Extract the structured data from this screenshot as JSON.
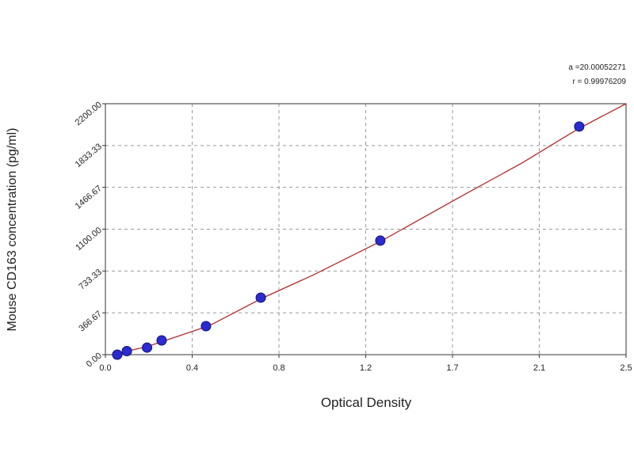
{
  "chart_data": {
    "type": "scatter",
    "xlabel": "Optical Density",
    "ylabel": "Mouse CD163 concentration (pg/ml)",
    "annotations": [
      "a =20.00052271",
      "r = 0.99976209"
    ],
    "xlim": [
      0,
      2.5
    ],
    "ylim": [
      0,
      2200
    ],
    "xticks": [
      {
        "value": 0,
        "label": "0.0"
      },
      {
        "value": 0.4167,
        "label": "0.4"
      },
      {
        "value": 0.8333,
        "label": "0.8"
      },
      {
        "value": 1.25,
        "label": "1.2"
      },
      {
        "value": 1.6667,
        "label": "1.7"
      },
      {
        "value": 2.0833,
        "label": "2.1"
      },
      2.5
    ],
    "yticks": [
      {
        "value": 0,
        "label": "0.00"
      },
      366.67,
      733.33,
      {
        "value": 1100,
        "label": "1100.00"
      },
      1466.67,
      1833.33,
      {
        "value": 2200,
        "label": "2200.00"
      }
    ],
    "grid": true,
    "series": [
      {
        "type": "scatter",
        "color": "#2b2bd0",
        "x": [
          0.057,
          0.103,
          0.2,
          0.27,
          0.483,
          0.746,
          1.32,
          2.275
        ],
        "values": [
          0,
          31,
          62,
          125,
          250,
          500,
          1000,
          2000
        ]
      },
      {
        "type": "line",
        "color": "#b02a2a",
        "x": [
          0.03,
          0.2,
          0.5,
          0.75,
          1.0,
          1.32,
          1.7,
          2.0,
          2.275,
          2.5
        ],
        "values": [
          0,
          70,
          255,
          493,
          700,
          992,
          1380,
          1680,
          1985,
          2200
        ]
      }
    ]
  }
}
